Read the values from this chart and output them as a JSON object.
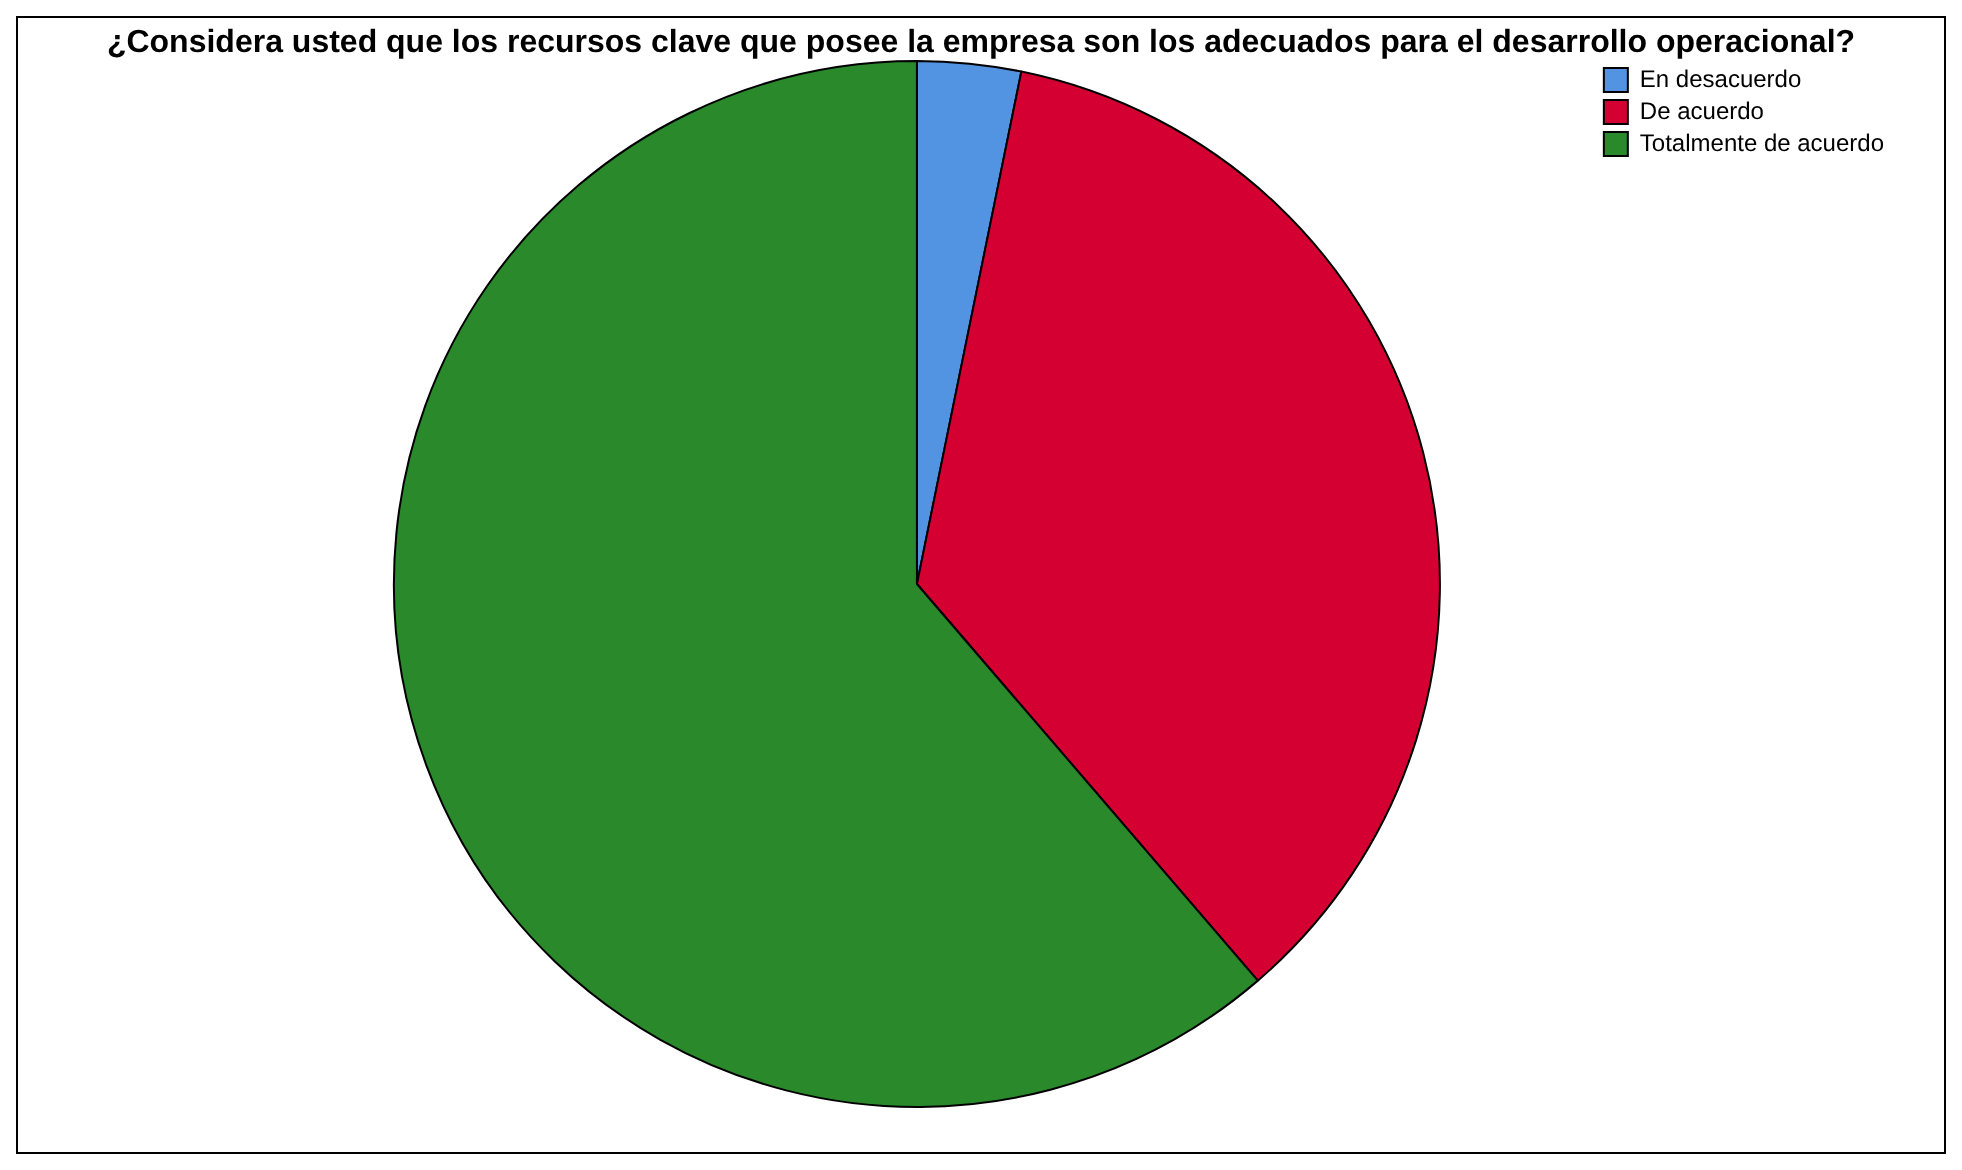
{
  "chart_data": {
    "type": "pie",
    "title": "¿Considera usted que los recursos clave que posee la empresa son los adecuados para el desarrollo operacional?",
    "categories": [
      "En desacuerdo",
      "De acuerdo",
      "Totalmente de acuerdo"
    ],
    "values": [
      3.2,
      35.5,
      61.3
    ],
    "colors": [
      "#5294e2",
      "#d50032",
      "#2a8a2b"
    ],
    "legend": "top right"
  }
}
